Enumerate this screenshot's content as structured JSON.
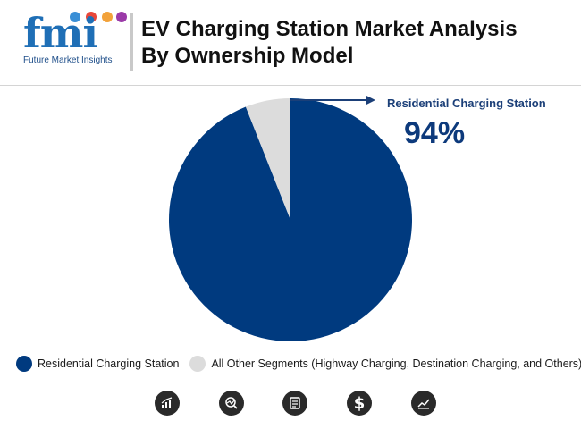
{
  "header": {
    "logo_text": "fmi",
    "logo_tagline": "Future Market Insights",
    "title_line1": "EV Charging Station Market Analysis",
    "title_line2": "By Ownership Model"
  },
  "callout": {
    "label": "Residential Charging Station",
    "value": "94%"
  },
  "colors": {
    "primary": "#003a7f",
    "secondary": "#dcdcdc",
    "accent_text": "#1b3f78"
  },
  "chart_data": {
    "type": "pie",
    "title": "EV Charging Station Market Analysis By Ownership Model",
    "slices": [
      {
        "label": "Residential Charging Station",
        "value": 94,
        "color": "#003a7f"
      },
      {
        "label": "All Other Segments (Highway Charging, Destination Charging, and Others)",
        "value": 6,
        "color": "#dcdcdc"
      }
    ],
    "legend_position": "bottom-left",
    "legend": [
      "Residential Charging Station",
      "All Other Segments (Highway Charging, Destination Charging, and Others)"
    ]
  },
  "footer_icons": [
    "bar-chart-icon",
    "analysis-icon",
    "report-icon",
    "dollar-icon",
    "trend-chart-icon"
  ]
}
